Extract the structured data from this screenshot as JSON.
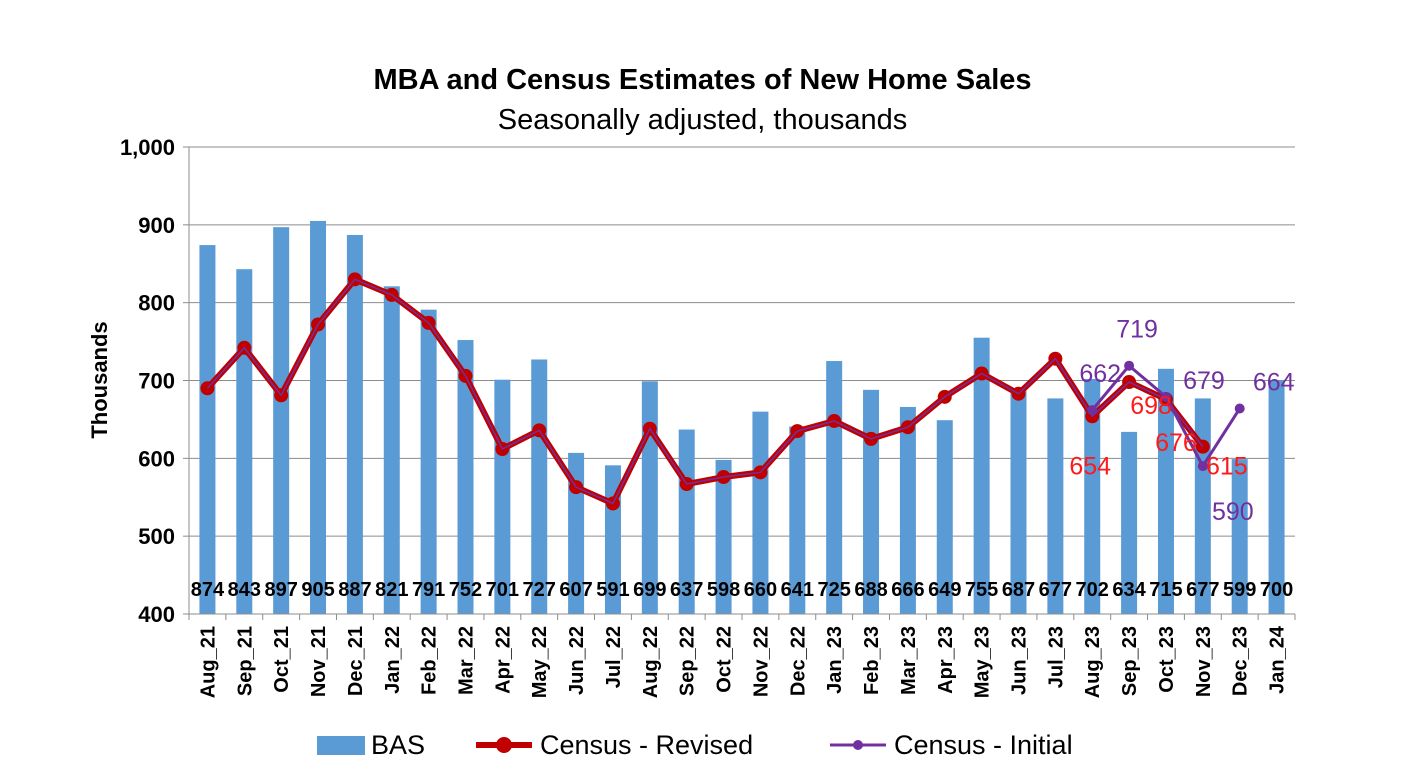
{
  "chart_data": {
    "type": "bar+line",
    "title": "MBA and Census Estimates of New Home Sales",
    "subtitle": "Seasonally adjusted, thousands",
    "ylabel": "Thousands",
    "ylim": [
      400,
      1000
    ],
    "yticks": [
      "400",
      "500",
      "600",
      "700",
      "800",
      "900",
      "1,000"
    ],
    "grid": true,
    "legend_position": "bottom",
    "categories": [
      "Aug_21",
      "Sep_21",
      "Oct_21",
      "Nov_21",
      "Dec_21",
      "Jan_22",
      "Feb_22",
      "Mar_22",
      "Apr_22",
      "May_22",
      "Jun_22",
      "Jul_22",
      "Aug_22",
      "Sep_22",
      "Oct_22",
      "Nov_22",
      "Dec_22",
      "Jan_23",
      "Feb_23",
      "Mar_23",
      "Apr_23",
      "May_23",
      "Jun_23",
      "Jul_23",
      "Aug_23",
      "Sep_23",
      "Oct_23",
      "Nov_23",
      "Dec_23",
      "Jan_24"
    ],
    "series": [
      {
        "name": "BAS",
        "kind": "bar",
        "color": "#5b9bd5",
        "values": [
          874,
          843,
          897,
          905,
          887,
          821,
          791,
          752,
          701,
          727,
          607,
          591,
          699,
          637,
          598,
          660,
          641,
          725,
          688,
          666,
          649,
          755,
          687,
          677,
          702,
          634,
          715,
          677,
          599,
          700
        ],
        "labels": [
          "874",
          "843",
          "897",
          "905",
          "887",
          "821",
          "791",
          "752",
          "701",
          "727",
          "607",
          "591",
          "699",
          "637",
          "598",
          "660",
          "641",
          "725",
          "688",
          "666",
          "649",
          "755",
          "687",
          "677",
          "702",
          "634",
          "715",
          "677",
          "599",
          "700"
        ]
      },
      {
        "name": "Census - Revised",
        "kind": "line",
        "color": "#c00000",
        "values": [
          690,
          742,
          681,
          772,
          830,
          810,
          774,
          706,
          612,
          636,
          563,
          542,
          638,
          567,
          576,
          582,
          635,
          648,
          625,
          640,
          679,
          709,
          683,
          728,
          654,
          698,
          676,
          615,
          null,
          null
        ],
        "data_labels": [
          {
            "index": 24,
            "text": "654"
          },
          {
            "index": 25,
            "text": "698"
          },
          {
            "index": 26,
            "text": "676"
          },
          {
            "index": 27,
            "text": "615"
          }
        ]
      },
      {
        "name": "Census - Initial",
        "kind": "line",
        "color": "#7030a0",
        "values": [
          null,
          null,
          null,
          null,
          null,
          null,
          null,
          null,
          null,
          null,
          null,
          null,
          null,
          null,
          null,
          null,
          null,
          null,
          null,
          null,
          null,
          null,
          null,
          null,
          662,
          719,
          679,
          590,
          664,
          null
        ],
        "data_labels": [
          {
            "index": 24,
            "text": "662"
          },
          {
            "index": 25,
            "text": "719"
          },
          {
            "index": 26,
            "text": "679"
          },
          {
            "index": 27,
            "text": "590"
          },
          {
            "index": 28,
            "text": "664"
          }
        ]
      }
    ]
  }
}
